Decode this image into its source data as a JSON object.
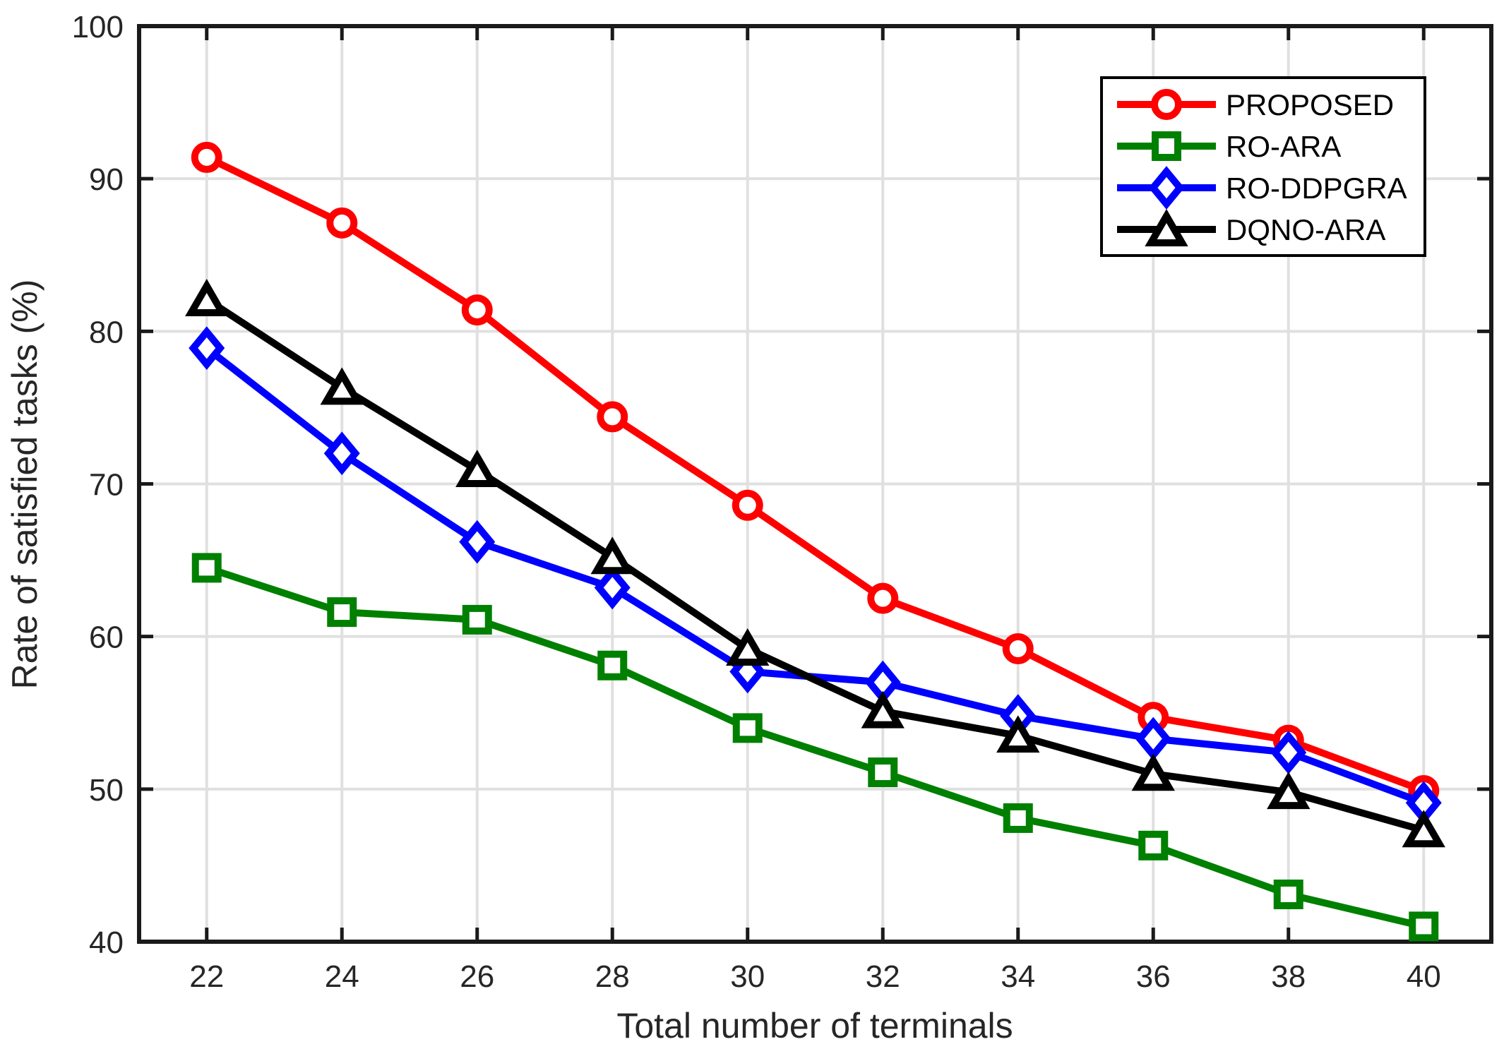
{
  "figure": {
    "kind": "matlab-style line plot",
    "background": "#ffffff"
  },
  "colors": {
    "grid": "#e0e0e0",
    "box": "#1a1a1a",
    "tick": "#1a1a1a",
    "text": "#262626",
    "legend_border": "#000000",
    "legend_bg": "#ffffff"
  },
  "chart_data": {
    "type": "line",
    "title": "",
    "xlabel": "Total number of terminals",
    "ylabel": "Rate of satisfied tasks (%)",
    "xlim": [
      21,
      41
    ],
    "ylim": [
      40,
      100
    ],
    "xticks": [
      22,
      24,
      26,
      28,
      30,
      32,
      34,
      36,
      38,
      40
    ],
    "yticks": [
      40,
      50,
      60,
      70,
      80,
      90,
      100
    ],
    "grid": true,
    "legend_position": "northeast",
    "x": [
      22,
      24,
      26,
      28,
      30,
      32,
      34,
      36,
      38,
      40
    ],
    "series": [
      {
        "name": "PROPOSED",
        "color": "#ff0000",
        "marker": "circle",
        "values": [
          91.4,
          87.1,
          81.4,
          74.4,
          68.6,
          62.5,
          59.2,
          54.7,
          53.2,
          49.9
        ]
      },
      {
        "name": "RO-ARA",
        "color": "#008000",
        "marker": "square",
        "values": [
          64.5,
          61.6,
          61.1,
          58.1,
          54.0,
          51.1,
          48.1,
          46.3,
          43.1,
          41.0
        ]
      },
      {
        "name": "RO-DDPGRA",
        "color": "#0000ff",
        "marker": "diamond",
        "values": [
          78.9,
          72.0,
          66.2,
          63.2,
          57.7,
          57.0,
          54.8,
          53.3,
          52.4,
          49.1
        ]
      },
      {
        "name": "DQNO-ARA",
        "color": "#000000",
        "marker": "triangle",
        "values": [
          82.1,
          76.3,
          70.9,
          65.2,
          59.2,
          55.1,
          53.5,
          51.0,
          49.8,
          47.3
        ]
      }
    ]
  }
}
